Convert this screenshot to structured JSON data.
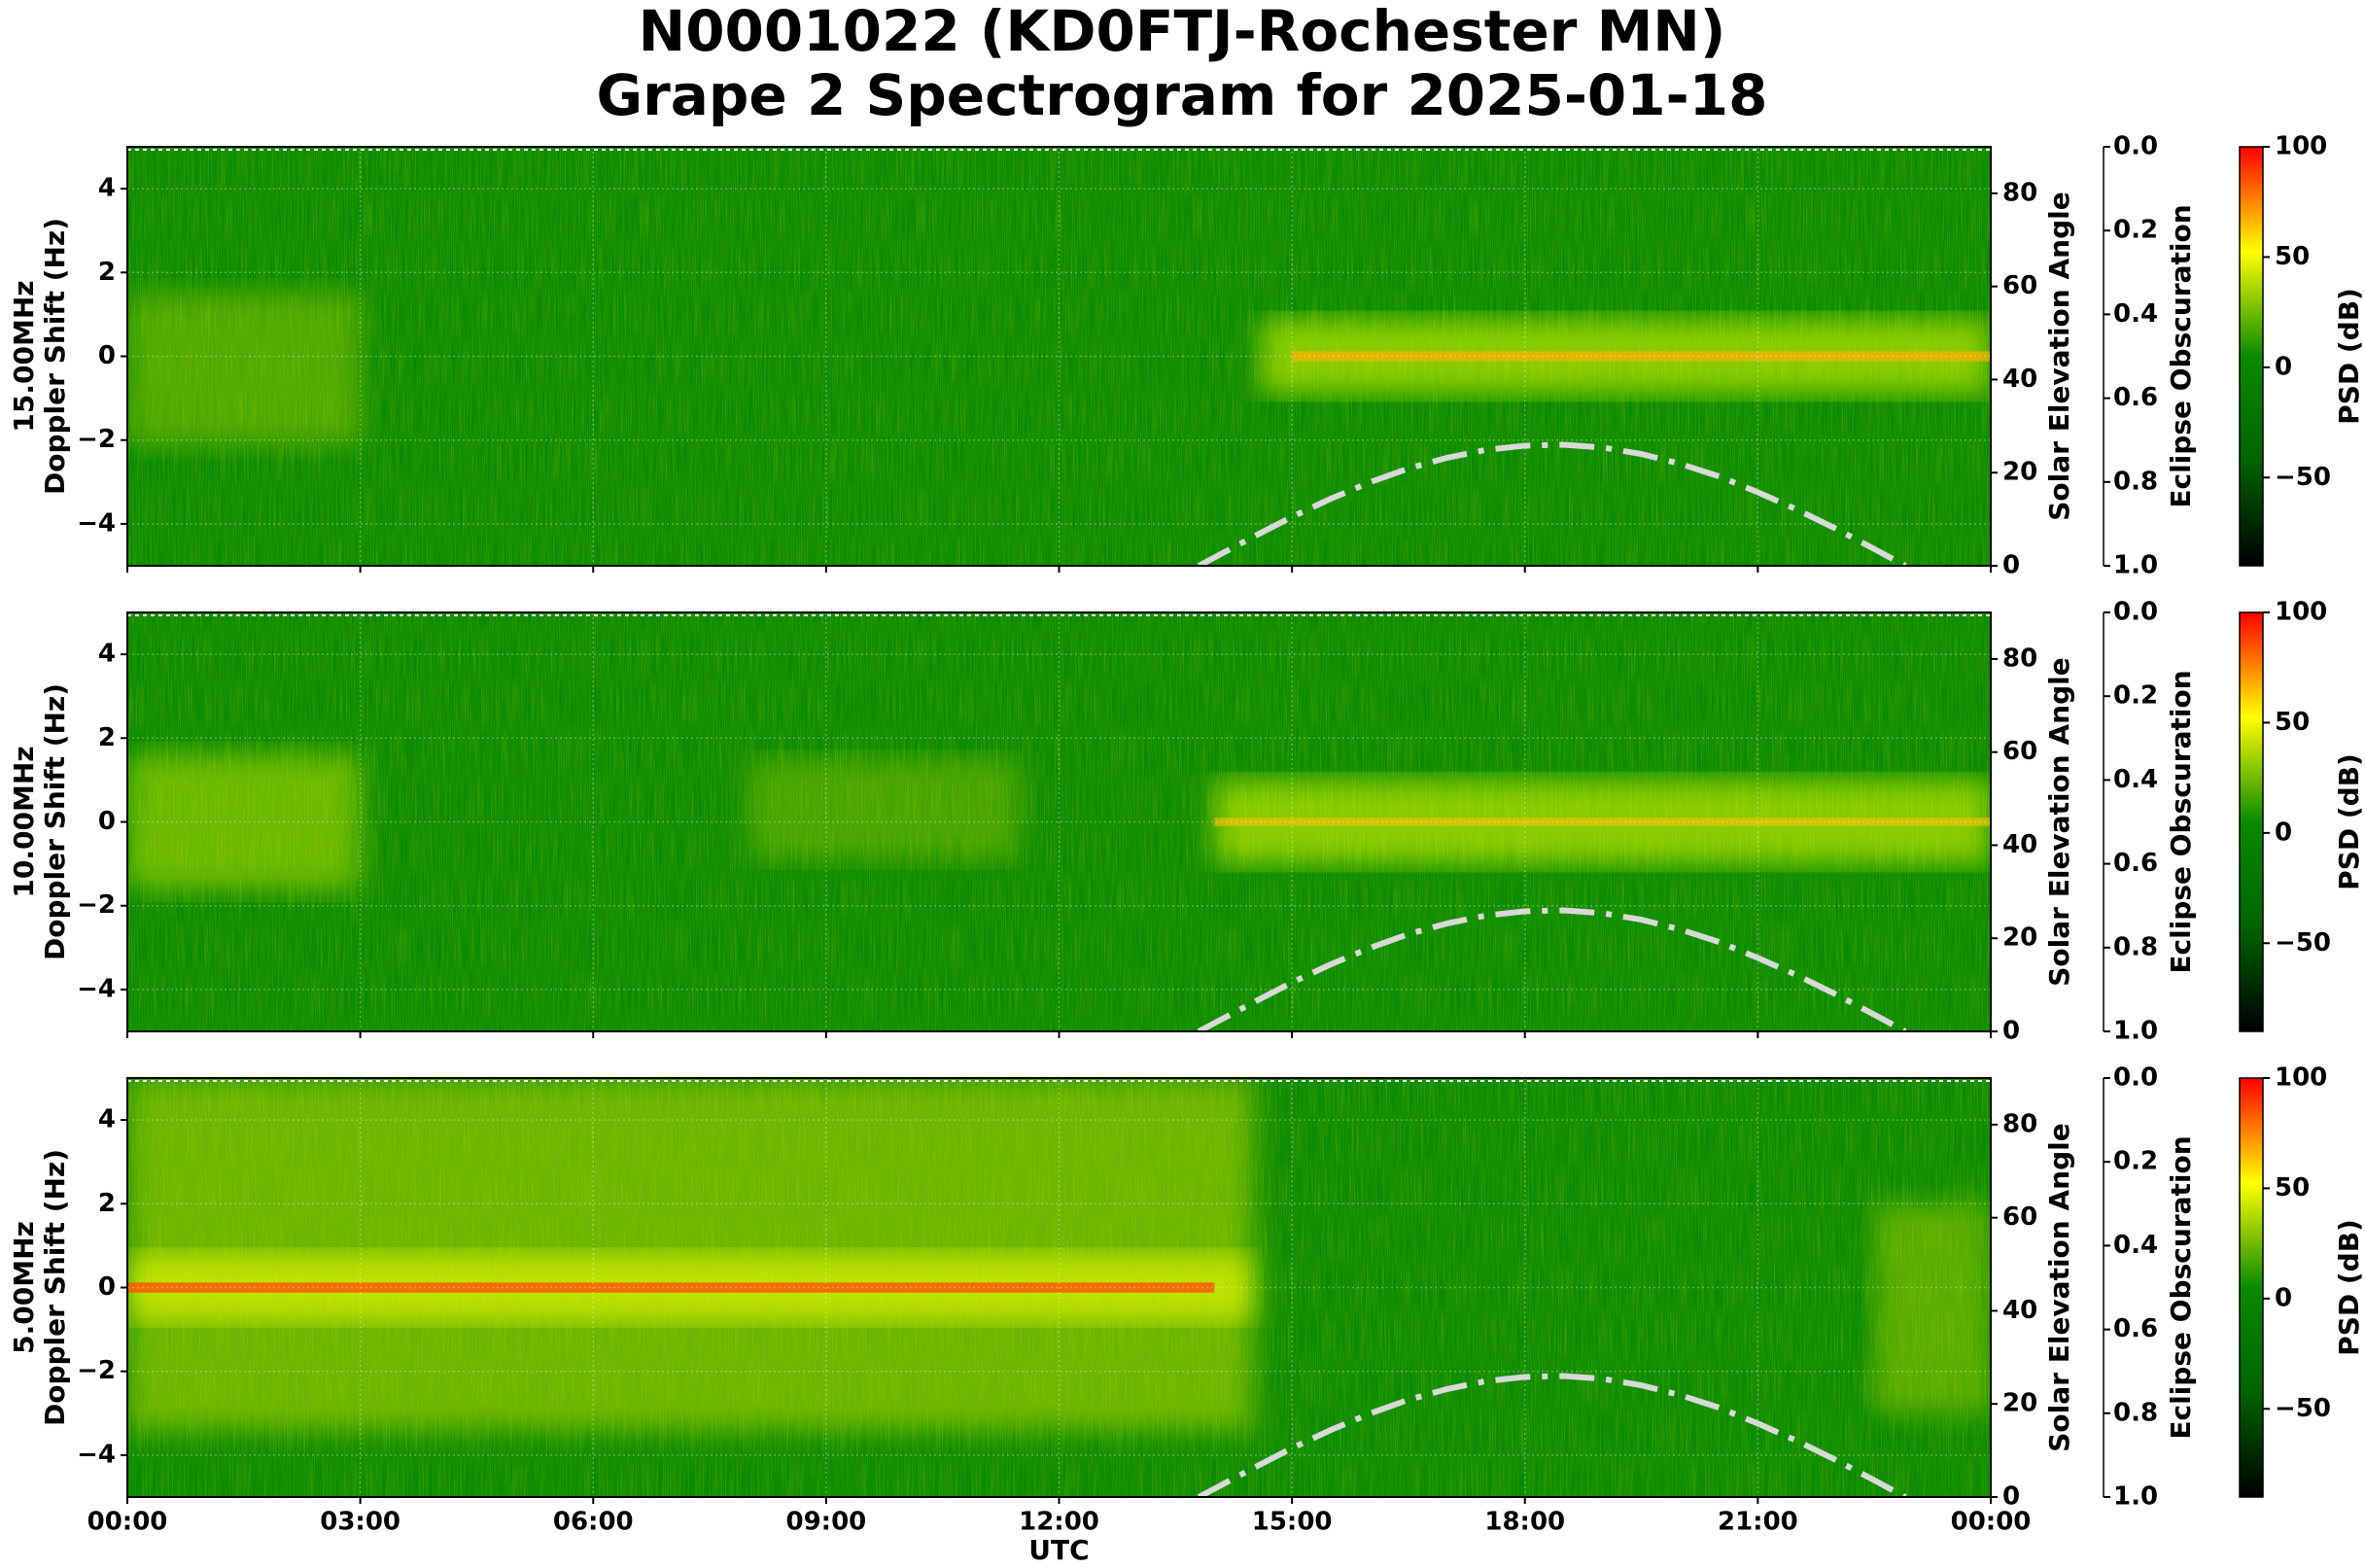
{
  "title": "N0001022 (KD0FTJ-Rochester MN)",
  "subtitle": "Grape 2 Spectrogram for 2025-01-18",
  "chart_data": [
    {
      "type": "spectrogram",
      "ylabel": [
        "15.00MHz",
        "Doppler Shift (Hz)"
      ],
      "y2label": "Solar Elevation Angle",
      "y3label": "Eclipse Obscuration",
      "clabel": "PSD (dB)",
      "xlim": [
        0,
        24
      ],
      "xticks": [
        0,
        3,
        6,
        9,
        12,
        15,
        18,
        21,
        24
      ],
      "ylim": [
        -5,
        5
      ],
      "yticks": [
        {
          "value": -4,
          "label": "−4"
        },
        {
          "value": -2,
          "label": "−2"
        },
        0,
        2,
        4
      ],
      "y2lim": [
        0,
        90
      ],
      "y2ticks": [
        0,
        20,
        40,
        60,
        80
      ],
      "y3lim": [
        1,
        0
      ],
      "y3ticks": [
        {
          "value": 0,
          "label": "0.0"
        },
        0.2,
        0.4,
        0.6,
        0.8,
        {
          "value": 1,
          "label": "1.0"
        }
      ],
      "clim": [
        -90,
        100
      ],
      "cticks": [
        {
          "value": -50,
          "label": "−50"
        },
        0,
        50,
        100
      ],
      "colormap": [
        "#000000",
        "#006400",
        "#0a8a00",
        "#ffff00",
        "#ff0000"
      ],
      "grid": true,
      "solar_elevation": {
        "axis": "y2",
        "color": "#d9d9d9",
        "x": [
          13.8,
          14.5,
          15,
          15.5,
          16,
          16.5,
          17,
          17.5,
          18,
          18.5,
          19,
          19.5,
          20,
          20.5,
          21,
          21.5,
          22,
          22.5,
          22.9
        ],
        "values": [
          0,
          6.2,
          10.5,
          14.4,
          17.9,
          20.9,
          23.2,
          24.9,
          25.8,
          26,
          25.4,
          24,
          21.9,
          19.2,
          15.8,
          12.1,
          8,
          3.6,
          0
        ]
      }
    },
    {
      "type": "spectrogram",
      "ylabel": [
        "10.00MHz",
        "Doppler Shift (Hz)"
      ],
      "y2label": "Solar Elevation Angle",
      "y3label": "Eclipse Obscuration",
      "clabel": "PSD (dB)",
      "xlim": [
        0,
        24
      ],
      "xticks": [
        0,
        3,
        6,
        9,
        12,
        15,
        18,
        21,
        24
      ],
      "ylim": [
        -5,
        5
      ],
      "yticks": [
        {
          "value": -4,
          "label": "−4"
        },
        {
          "value": -2,
          "label": "−2"
        },
        0,
        2,
        4
      ],
      "y2lim": [
        0,
        90
      ],
      "y2ticks": [
        0,
        20,
        40,
        60,
        80
      ],
      "y3lim": [
        1,
        0
      ],
      "y3ticks": [
        {
          "value": 0,
          "label": "0.0"
        },
        0.2,
        0.4,
        0.6,
        0.8,
        {
          "value": 1,
          "label": "1.0"
        }
      ],
      "clim": [
        -90,
        100
      ],
      "cticks": [
        {
          "value": -50,
          "label": "−50"
        },
        0,
        50,
        100
      ],
      "colormap": [
        "#000000",
        "#006400",
        "#0a8a00",
        "#ffff00",
        "#ff0000"
      ],
      "grid": true,
      "solar_elevation": {
        "axis": "y2",
        "color": "#d9d9d9",
        "x": [
          13.8,
          14.5,
          15,
          15.5,
          16,
          16.5,
          17,
          17.5,
          18,
          18.5,
          19,
          19.5,
          20,
          20.5,
          21,
          21.5,
          22,
          22.5,
          22.9
        ],
        "values": [
          0,
          6.2,
          10.5,
          14.4,
          17.9,
          20.9,
          23.2,
          24.9,
          25.8,
          26,
          25.4,
          24,
          21.9,
          19.2,
          15.8,
          12.1,
          8,
          3.6,
          0
        ]
      }
    },
    {
      "type": "spectrogram",
      "ylabel": [
        "5.00MHz",
        "Doppler Shift (Hz)"
      ],
      "y2label": "Solar Elevation Angle",
      "y3label": "Eclipse Obscuration",
      "clabel": "PSD (dB)",
      "xlabel": "UTC",
      "xlim": [
        0,
        24
      ],
      "xticks": [
        {
          "value": 0,
          "label": "00:00"
        },
        {
          "value": 3,
          "label": "03:00"
        },
        {
          "value": 6,
          "label": "06:00"
        },
        {
          "value": 9,
          "label": "09:00"
        },
        {
          "value": 12,
          "label": "12:00"
        },
        {
          "value": 15,
          "label": "15:00"
        },
        {
          "value": 18,
          "label": "18:00"
        },
        {
          "value": 21,
          "label": "21:00"
        },
        {
          "value": 24,
          "label": "00:00"
        }
      ],
      "ylim": [
        -5,
        5
      ],
      "yticks": [
        {
          "value": -4,
          "label": "−4"
        },
        {
          "value": -2,
          "label": "−2"
        },
        0,
        2,
        4
      ],
      "y2lim": [
        0,
        90
      ],
      "y2ticks": [
        0,
        20,
        40,
        60,
        80
      ],
      "y3lim": [
        1,
        0
      ],
      "y3ticks": [
        {
          "value": 0,
          "label": "0.0"
        },
        0.2,
        0.4,
        0.6,
        0.8,
        {
          "value": 1,
          "label": "1.0"
        }
      ],
      "clim": [
        -90,
        100
      ],
      "cticks": [
        {
          "value": -50,
          "label": "−50"
        },
        0,
        50,
        100
      ],
      "colormap": [
        "#000000",
        "#006400",
        "#0a8a00",
        "#ffff00",
        "#ff0000"
      ],
      "grid": true,
      "solar_elevation": {
        "axis": "y2",
        "color": "#d9d9d9",
        "x": [
          13.8,
          14.5,
          15,
          15.5,
          16,
          16.5,
          17,
          17.5,
          18,
          18.5,
          19,
          19.5,
          20,
          20.5,
          21,
          21.5,
          22,
          22.5,
          22.9
        ],
        "values": [
          0,
          6.2,
          10.5,
          14.4,
          17.9,
          20.9,
          23.2,
          24.9,
          25.8,
          26,
          25.4,
          24,
          21.9,
          19.2,
          15.8,
          12.1,
          8,
          3.6,
          0
        ]
      }
    }
  ]
}
